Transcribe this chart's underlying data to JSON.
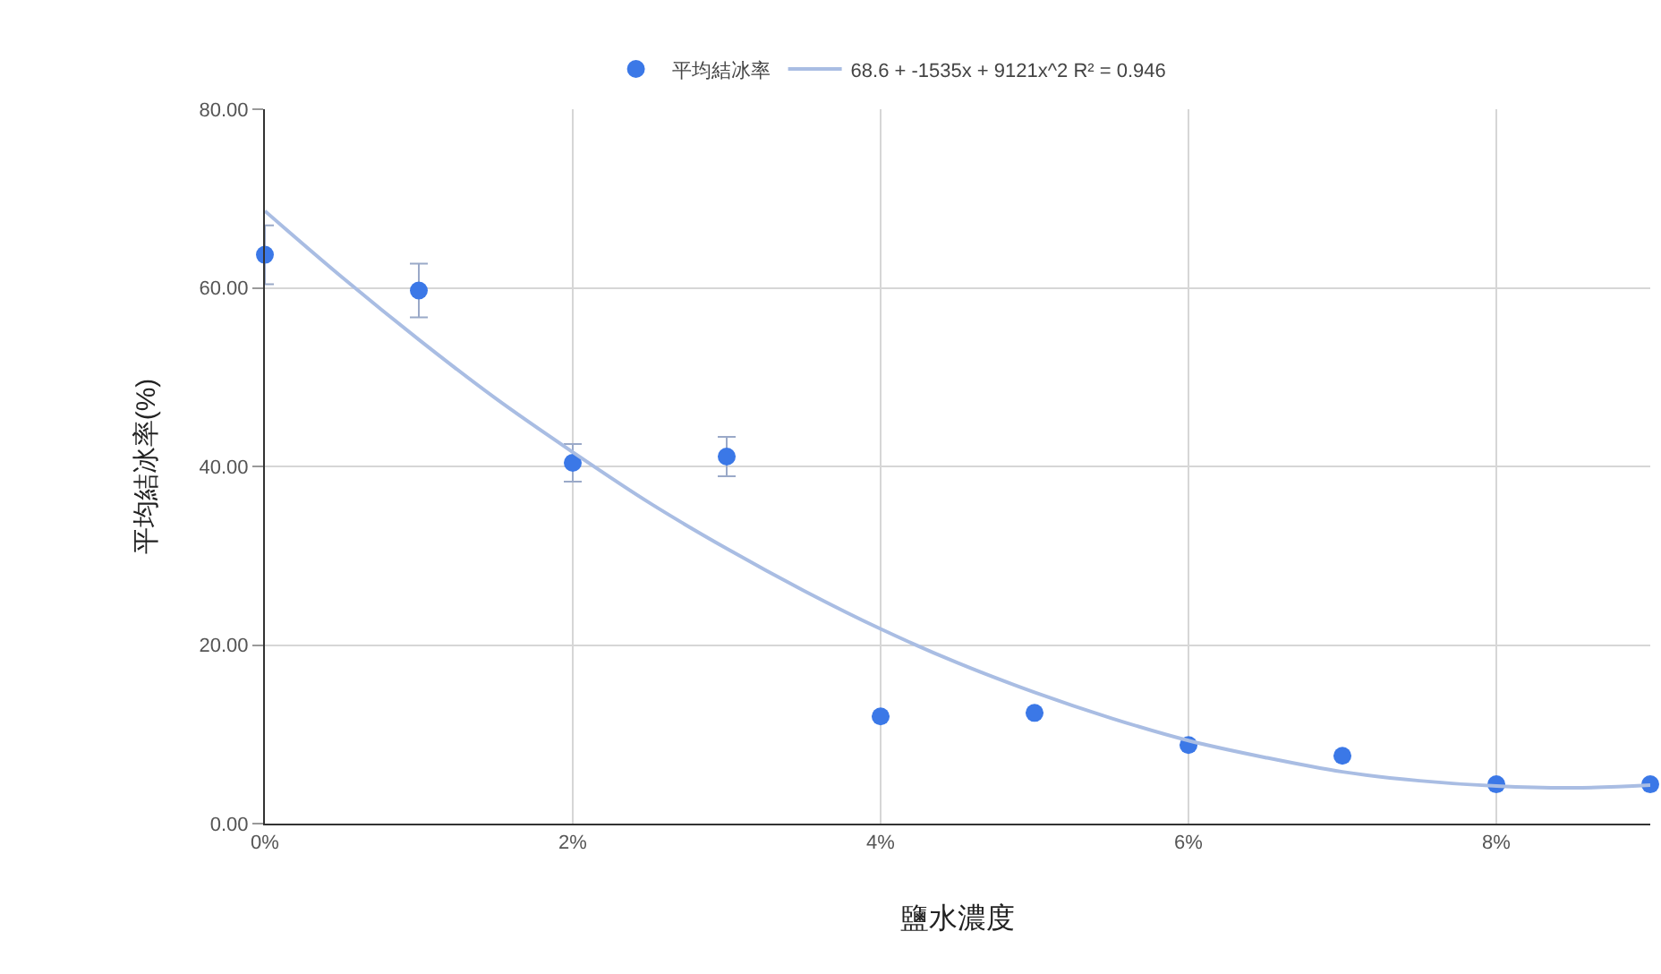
{
  "chart_data": {
    "type": "scatter",
    "xlabel": "鹽水濃度",
    "ylabel": "平均結冰率(%)",
    "xlim": [
      0,
      0.09
    ],
    "xticks": [
      {
        "value": 0,
        "label": "0%"
      },
      {
        "value": 0.02,
        "label": "2%"
      },
      {
        "value": 0.04,
        "label": "4%"
      },
      {
        "value": 0.06,
        "label": "6%"
      },
      {
        "value": 0.08,
        "label": "8%"
      }
    ],
    "ylim": [
      0,
      80
    ],
    "yticks": [
      {
        "value": 0,
        "label": "0.00"
      },
      {
        "value": 20,
        "label": "20.00"
      },
      {
        "value": 40,
        "label": "40.00"
      },
      {
        "value": 60,
        "label": "60.00"
      },
      {
        "value": 80,
        "label": "80.00"
      }
    ],
    "grid": true,
    "legend": "top",
    "marker": "circle",
    "series": [
      {
        "name": "平均結冰率",
        "color": "#3b78e7",
        "x": [
          0,
          0.01,
          0.02,
          0.03,
          0.04,
          0.05,
          0.06,
          0.07,
          0.08,
          0.09
        ],
        "values": [
          63.7,
          59.7,
          40.4,
          41.1,
          12.0,
          12.4,
          8.8,
          7.6,
          4.4,
          4.4
        ],
        "errors": [
          3.3,
          3.0,
          2.1,
          2.2,
          null,
          null,
          null,
          null,
          null,
          null
        ]
      },
      {
        "name": "68.6 + -1535x + 9121x^2 R² = 0.946",
        "type": "line",
        "marker": "none",
        "color": "#a9bde3",
        "x": [
          0,
          0.005,
          0.01,
          0.015,
          0.02,
          0.025,
          0.03,
          0.035,
          0.04,
          0.045,
          0.05,
          0.055,
          0.06,
          0.065,
          0.07,
          0.075,
          0.08,
          0.085,
          0.09
        ],
        "values": [
          68.6,
          61.2,
          54.2,
          47.6,
          41.6,
          35.9,
          30.8,
          26.1,
          21.8,
          18.0,
          14.7,
          11.8,
          9.3,
          7.4,
          5.8,
          4.8,
          4.2,
          4.0,
          4.3
        ]
      }
    ]
  }
}
